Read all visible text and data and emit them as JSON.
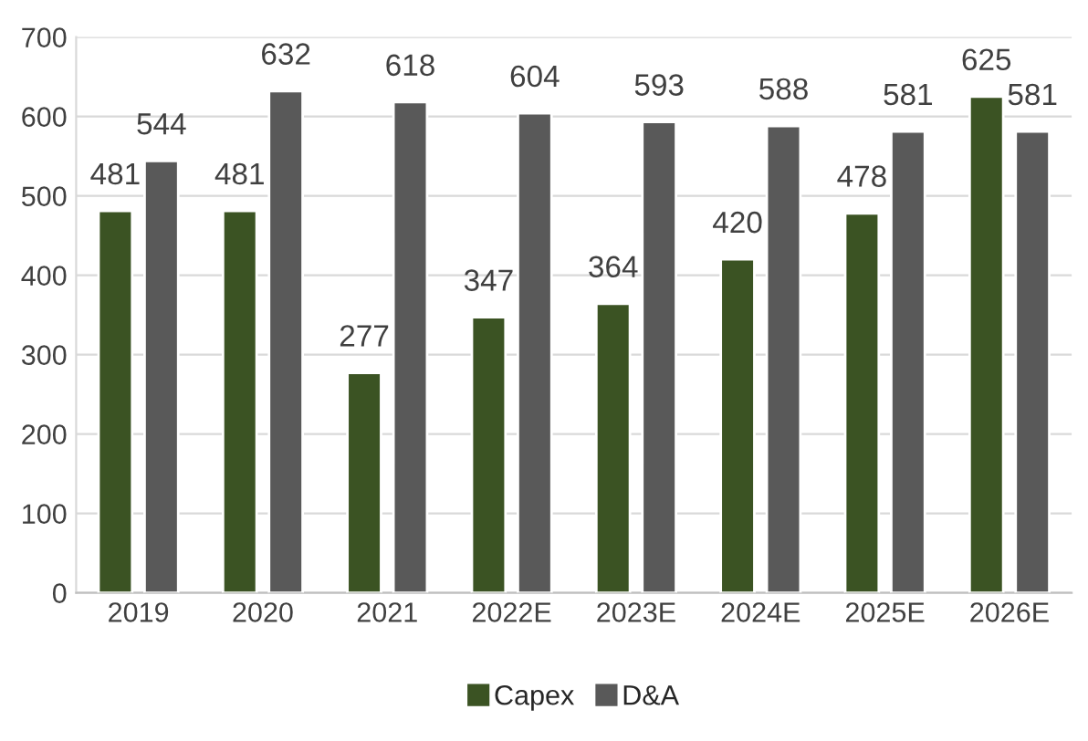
{
  "chart_data": {
    "type": "bar",
    "categories": [
      "2019",
      "2020",
      "2021",
      "2022E",
      "2023E",
      "2024E",
      "2025E",
      "2026E"
    ],
    "series": [
      {
        "name": "Capex",
        "color": "#3b5323",
        "values": [
          481,
          481,
          277,
          347,
          364,
          420,
          478,
          625
        ]
      },
      {
        "name": "D&A",
        "color": "#595959",
        "values": [
          544,
          632,
          618,
          604,
          593,
          588,
          581,
          581
        ]
      }
    ],
    "ylim": [
      0,
      700
    ],
    "yticks": [
      0,
      100,
      200,
      300,
      400,
      500,
      600,
      700
    ],
    "grid": "y",
    "legend": "bottom",
    "data_labels": true
  }
}
